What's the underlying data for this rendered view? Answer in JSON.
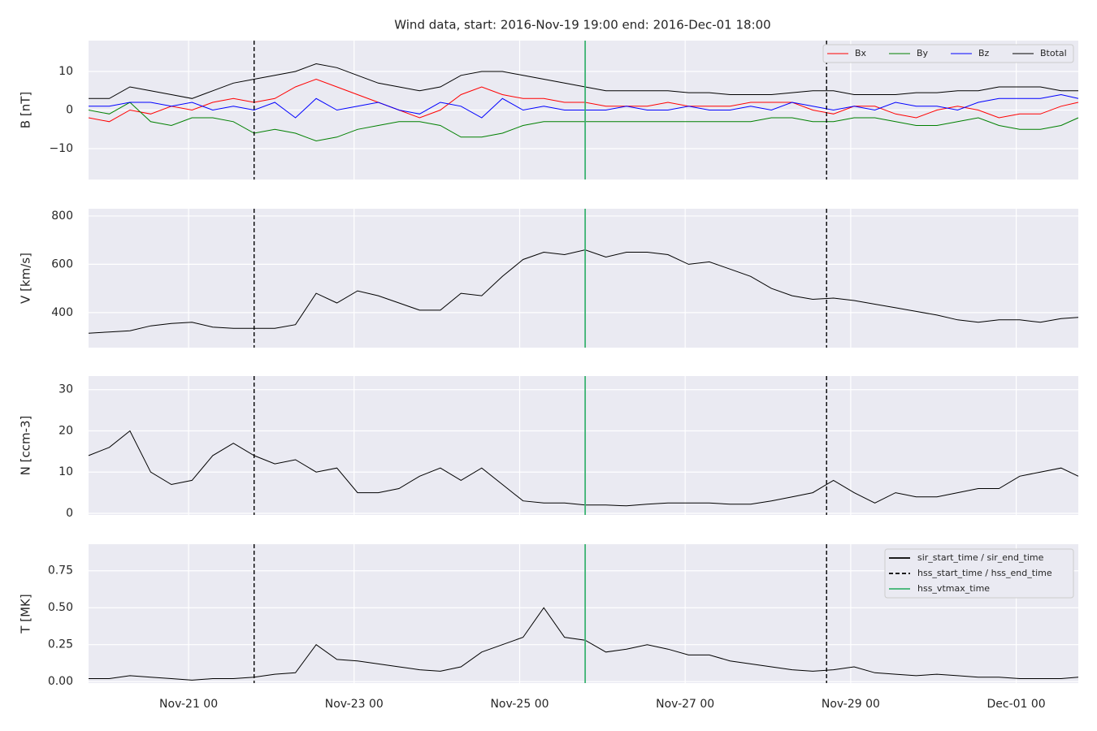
{
  "title": "Wind data, start: 2016-Nov-19 19:00  end: 2016-Dec-01 18:00",
  "markers": [
    {
      "name": "sir_start_time / sir_end_time",
      "color": "#000000",
      "dashed": false,
      "x": []
    },
    {
      "name": "hss_start_time / hss_end_time",
      "color": "#000000",
      "dashed": true,
      "x": [
        "2016-11-21T19:00",
        "2016-11-28T17:00"
      ]
    },
    {
      "name": "hss_vtmax_time",
      "color": "#3cb371",
      "dashed": false,
      "x": [
        "2016-11-25T19:00"
      ]
    }
  ],
  "chart_data": [
    {
      "type": "line",
      "ylabel": "B [nT]",
      "legend": "upper right",
      "grid": true,
      "sharex": true,
      "xlim": [
        "2016-11-19T19:00",
        "2016-12-01T18:00"
      ],
      "ylim": [
        -18,
        18
      ],
      "yticks": [
        {
          "value": -10,
          "label": "−10"
        },
        0,
        10
      ],
      "x": [
        "2016-11-19T19:00",
        "2016-11-20T01:00",
        "2016-11-20T07:00",
        "2016-11-20T13:00",
        "2016-11-20T19:00",
        "2016-11-21T01:00",
        "2016-11-21T07:00",
        "2016-11-21T13:00",
        "2016-11-21T19:00",
        "2016-11-22T01:00",
        "2016-11-22T07:00",
        "2016-11-22T13:00",
        "2016-11-22T19:00",
        "2016-11-23T01:00",
        "2016-11-23T07:00",
        "2016-11-23T13:00",
        "2016-11-23T19:00",
        "2016-11-24T01:00",
        "2016-11-24T07:00",
        "2016-11-24T13:00",
        "2016-11-24T19:00",
        "2016-11-25T01:00",
        "2016-11-25T07:00",
        "2016-11-25T13:00",
        "2016-11-25T19:00",
        "2016-11-26T01:00",
        "2016-11-26T07:00",
        "2016-11-26T13:00",
        "2016-11-26T19:00",
        "2016-11-27T01:00",
        "2016-11-27T07:00",
        "2016-11-27T13:00",
        "2016-11-27T19:00",
        "2016-11-28T01:00",
        "2016-11-28T07:00",
        "2016-11-28T13:00",
        "2016-11-28T19:00",
        "2016-11-29T01:00",
        "2016-11-29T07:00",
        "2016-11-29T13:00",
        "2016-11-29T19:00",
        "2016-11-30T01:00",
        "2016-11-30T07:00",
        "2016-11-30T13:00",
        "2016-11-30T19:00",
        "2016-12-01T01:00",
        "2016-12-01T07:00",
        "2016-12-01T13:00",
        "2016-12-01T18:00"
      ],
      "series": [
        {
          "name": "Bx",
          "color": "#ff0000",
          "values": [
            -2,
            -3,
            0,
            -1,
            1,
            0,
            2,
            3,
            2,
            3,
            6,
            8,
            6,
            4,
            2,
            0,
            -2,
            0,
            4,
            6,
            4,
            3,
            3,
            2,
            2,
            1,
            1,
            1,
            2,
            1,
            1,
            1,
            2,
            2,
            2,
            0,
            -1,
            1,
            1,
            -1,
            -2,
            0,
            1,
            0,
            -2,
            -1,
            -1,
            1,
            2
          ]
        },
        {
          "name": "By",
          "color": "#008000",
          "values": [
            0,
            -1,
            2,
            -3,
            -4,
            -2,
            -2,
            -3,
            -6,
            -5,
            -6,
            -8,
            -7,
            -5,
            -4,
            -3,
            -3,
            -4,
            -7,
            -7,
            -6,
            -4,
            -3,
            -3,
            -3,
            -3,
            -3,
            -3,
            -3,
            -3,
            -3,
            -3,
            -3,
            -2,
            -2,
            -3,
            -3,
            -2,
            -2,
            -3,
            -4,
            -4,
            -3,
            -2,
            -4,
            -5,
            -5,
            -4,
            -2
          ]
        },
        {
          "name": "Bz",
          "color": "#0000ff",
          "values": [
            1,
            1,
            2,
            2,
            1,
            2,
            0,
            1,
            0,
            2,
            -2,
            3,
            0,
            1,
            2,
            0,
            -1,
            2,
            1,
            -2,
            3,
            0,
            1,
            0,
            0,
            0,
            1,
            0,
            0,
            1,
            0,
            0,
            1,
            0,
            2,
            1,
            0,
            1,
            0,
            2,
            1,
            1,
            0,
            2,
            3,
            3,
            3,
            4,
            3
          ]
        },
        {
          "name": "Btotal",
          "color": "#000000",
          "values": [
            3,
            3,
            6,
            5,
            4,
            3,
            5,
            7,
            8,
            9,
            10,
            12,
            11,
            9,
            7,
            6,
            5,
            6,
            9,
            10,
            10,
            9,
            8,
            7,
            6,
            5,
            5,
            5,
            5,
            4.5,
            4.5,
            4,
            4,
            4,
            4.5,
            5,
            5,
            4,
            4,
            4,
            4.5,
            4.5,
            5,
            5,
            6,
            6,
            6,
            5,
            5
          ]
        }
      ]
    },
    {
      "type": "line",
      "ylabel": "V [km/s]",
      "grid": true,
      "sharex": true,
      "xlim": [
        "2016-11-19T19:00",
        "2016-12-01T18:00"
      ],
      "ylim": [
        255,
        830
      ],
      "yticks": [
        400,
        600,
        800
      ],
      "x": [
        "2016-11-19T19:00",
        "2016-11-20T01:00",
        "2016-11-20T07:00",
        "2016-11-20T13:00",
        "2016-11-20T19:00",
        "2016-11-21T01:00",
        "2016-11-21T07:00",
        "2016-11-21T13:00",
        "2016-11-21T19:00",
        "2016-11-22T01:00",
        "2016-11-22T07:00",
        "2016-11-22T13:00",
        "2016-11-22T19:00",
        "2016-11-23T01:00",
        "2016-11-23T07:00",
        "2016-11-23T13:00",
        "2016-11-23T19:00",
        "2016-11-24T01:00",
        "2016-11-24T07:00",
        "2016-11-24T13:00",
        "2016-11-24T19:00",
        "2016-11-25T01:00",
        "2016-11-25T07:00",
        "2016-11-25T13:00",
        "2016-11-25T19:00",
        "2016-11-26T01:00",
        "2016-11-26T07:00",
        "2016-11-26T13:00",
        "2016-11-26T19:00",
        "2016-11-27T01:00",
        "2016-11-27T07:00",
        "2016-11-27T13:00",
        "2016-11-27T19:00",
        "2016-11-28T01:00",
        "2016-11-28T07:00",
        "2016-11-28T13:00",
        "2016-11-28T19:00",
        "2016-11-29T01:00",
        "2016-11-29T07:00",
        "2016-11-29T13:00",
        "2016-11-29T19:00",
        "2016-11-30T01:00",
        "2016-11-30T07:00",
        "2016-11-30T13:00",
        "2016-11-30T19:00",
        "2016-12-01T01:00",
        "2016-12-01T07:00",
        "2016-12-01T13:00",
        "2016-12-01T18:00"
      ],
      "series": [
        {
          "color": "#000000",
          "values": [
            315,
            320,
            325,
            345,
            355,
            360,
            340,
            335,
            335,
            335,
            350,
            480,
            440,
            490,
            470,
            440,
            410,
            410,
            480,
            470,
            550,
            620,
            650,
            640,
            660,
            630,
            650,
            650,
            640,
            600,
            610,
            580,
            550,
            500,
            470,
            455,
            460,
            450,
            435,
            420,
            405,
            390,
            370,
            360,
            370,
            370,
            360,
            375,
            380
          ]
        }
      ]
    },
    {
      "type": "line",
      "ylabel": "N [ccm-3]",
      "grid": true,
      "sharex": true,
      "xlim": [
        "2016-11-19T19:00",
        "2016-12-01T18:00"
      ],
      "ylim": [
        -0.4,
        33.3
      ],
      "yticks": [
        0,
        10,
        20,
        30
      ],
      "x": [
        "2016-11-19T19:00",
        "2016-11-20T01:00",
        "2016-11-20T07:00",
        "2016-11-20T13:00",
        "2016-11-20T19:00",
        "2016-11-21T01:00",
        "2016-11-21T07:00",
        "2016-11-21T13:00",
        "2016-11-21T19:00",
        "2016-11-22T01:00",
        "2016-11-22T07:00",
        "2016-11-22T13:00",
        "2016-11-22T19:00",
        "2016-11-23T01:00",
        "2016-11-23T07:00",
        "2016-11-23T13:00",
        "2016-11-23T19:00",
        "2016-11-24T01:00",
        "2016-11-24T07:00",
        "2016-11-24T13:00",
        "2016-11-24T19:00",
        "2016-11-25T01:00",
        "2016-11-25T07:00",
        "2016-11-25T13:00",
        "2016-11-25T19:00",
        "2016-11-26T01:00",
        "2016-11-26T07:00",
        "2016-11-26T13:00",
        "2016-11-26T19:00",
        "2016-11-27T01:00",
        "2016-11-27T07:00",
        "2016-11-27T13:00",
        "2016-11-27T19:00",
        "2016-11-28T01:00",
        "2016-11-28T07:00",
        "2016-11-28T13:00",
        "2016-11-28T19:00",
        "2016-11-29T01:00",
        "2016-11-29T07:00",
        "2016-11-29T13:00",
        "2016-11-29T19:00",
        "2016-11-30T01:00",
        "2016-11-30T07:00",
        "2016-11-30T13:00",
        "2016-11-30T19:00",
        "2016-12-01T01:00",
        "2016-12-01T07:00",
        "2016-12-01T13:00",
        "2016-12-01T18:00"
      ],
      "series": [
        {
          "color": "#000000",
          "values": [
            14,
            16,
            20,
            10,
            7,
            8,
            14,
            17,
            14,
            12,
            13,
            10,
            11,
            5,
            5,
            6,
            9,
            11,
            8,
            11,
            7,
            3,
            2.5,
            2.5,
            2,
            2,
            1.8,
            2.2,
            2.5,
            2.5,
            2.5,
            2.2,
            2.2,
            3,
            4,
            5,
            8,
            5,
            2.5,
            5,
            4,
            4,
            5,
            6,
            6,
            9,
            10,
            11,
            9
          ]
        }
      ]
    },
    {
      "type": "line",
      "ylabel": "T [MK]",
      "grid": true,
      "marker_legend": "upper right",
      "xlim": [
        "2016-11-19T19:00",
        "2016-12-01T18:00"
      ],
      "ylim": [
        -0.01,
        0.93
      ],
      "yticks": [
        {
          "value": 0,
          "label": "0.00"
        },
        {
          "value": 0.25,
          "label": "0.25"
        },
        {
          "value": 0.5,
          "label": "0.50"
        },
        {
          "value": 0.75,
          "label": "0.75"
        }
      ],
      "xticks": [
        {
          "value": "2016-11-21T00:00",
          "label": "Nov-21 00"
        },
        {
          "value": "2016-11-23T00:00",
          "label": "Nov-23 00"
        },
        {
          "value": "2016-11-25T00:00",
          "label": "Nov-25 00"
        },
        {
          "value": "2016-11-27T00:00",
          "label": "Nov-27 00"
        },
        {
          "value": "2016-11-29T00:00",
          "label": "Nov-29 00"
        },
        {
          "value": "2016-12-01T00:00",
          "label": "Dec-01 00"
        }
      ],
      "x": [
        "2016-11-19T19:00",
        "2016-11-20T01:00",
        "2016-11-20T07:00",
        "2016-11-20T13:00",
        "2016-11-20T19:00",
        "2016-11-21T01:00",
        "2016-11-21T07:00",
        "2016-11-21T13:00",
        "2016-11-21T19:00",
        "2016-11-22T01:00",
        "2016-11-22T07:00",
        "2016-11-22T13:00",
        "2016-11-22T19:00",
        "2016-11-23T01:00",
        "2016-11-23T07:00",
        "2016-11-23T13:00",
        "2016-11-23T19:00",
        "2016-11-24T01:00",
        "2016-11-24T07:00",
        "2016-11-24T13:00",
        "2016-11-24T19:00",
        "2016-11-25T01:00",
        "2016-11-25T07:00",
        "2016-11-25T13:00",
        "2016-11-25T19:00",
        "2016-11-26T01:00",
        "2016-11-26T07:00",
        "2016-11-26T13:00",
        "2016-11-26T19:00",
        "2016-11-27T01:00",
        "2016-11-27T07:00",
        "2016-11-27T13:00",
        "2016-11-27T19:00",
        "2016-11-28T01:00",
        "2016-11-28T07:00",
        "2016-11-28T13:00",
        "2016-11-28T19:00",
        "2016-11-29T01:00",
        "2016-11-29T07:00",
        "2016-11-29T13:00",
        "2016-11-29T19:00",
        "2016-11-30T01:00",
        "2016-11-30T07:00",
        "2016-11-30T13:00",
        "2016-11-30T19:00",
        "2016-12-01T01:00",
        "2016-12-01T07:00",
        "2016-12-01T13:00",
        "2016-12-01T18:00"
      ],
      "series": [
        {
          "color": "#000000",
          "values": [
            0.02,
            0.02,
            0.04,
            0.03,
            0.02,
            0.01,
            0.02,
            0.02,
            0.03,
            0.05,
            0.06,
            0.25,
            0.15,
            0.14,
            0.12,
            0.1,
            0.08,
            0.07,
            0.1,
            0.2,
            0.25,
            0.3,
            0.5,
            0.3,
            0.28,
            0.2,
            0.22,
            0.25,
            0.22,
            0.18,
            0.18,
            0.14,
            0.12,
            0.1,
            0.08,
            0.07,
            0.08,
            0.1,
            0.06,
            0.05,
            0.04,
            0.05,
            0.04,
            0.03,
            0.03,
            0.02,
            0.02,
            0.02,
            0.03
          ]
        }
      ]
    }
  ]
}
